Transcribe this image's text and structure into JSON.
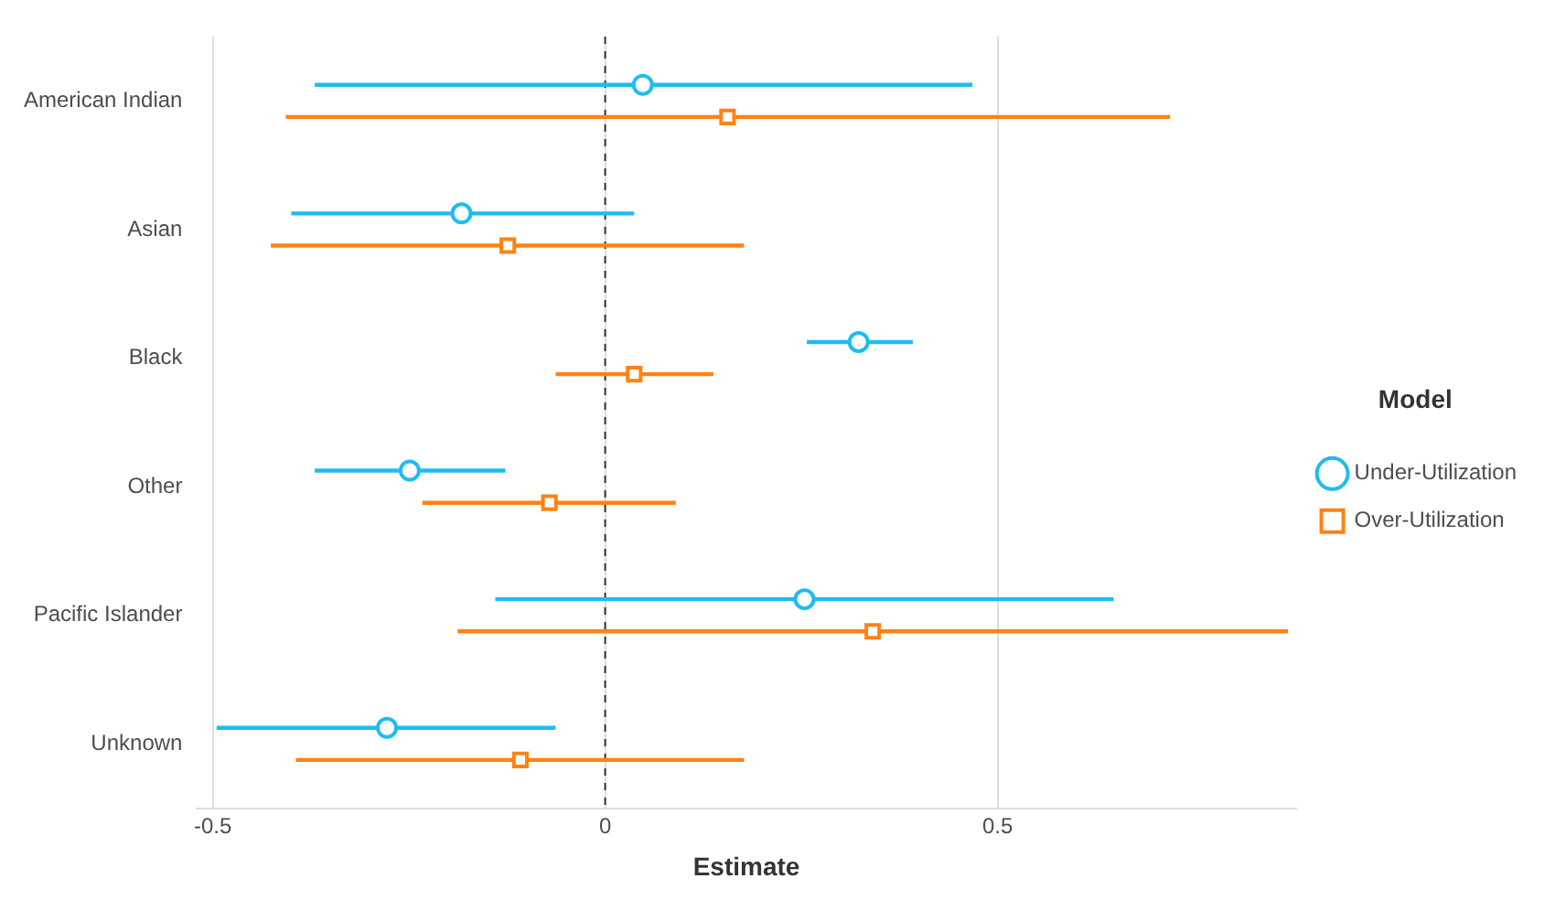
{
  "chart_data": {
    "type": "scatter",
    "orientation": "horizontal",
    "xlabel": "Estimate",
    "legend_title": "Model",
    "legend": "right",
    "grid": "x",
    "categories": [
      "American Indian",
      "Asian",
      "Black",
      "Other",
      "Pacific Islander",
      "Unknown"
    ],
    "xlim": [
      -0.52,
      0.88
    ],
    "xticks": [
      -0.5,
      0,
      0.5
    ],
    "ref_lines": [
      {
        "axis": "x",
        "value": 0,
        "line_style": "dashed",
        "color": "#333333"
      }
    ],
    "series": [
      {
        "name": "Under-Utilization",
        "color": "#1ebcf0",
        "marker": "circle",
        "values": [
          0.048,
          -0.183,
          0.323,
          -0.249,
          0.254,
          -0.278
        ],
        "errors": [
          [
            -0.37,
            0.468
          ],
          [
            -0.4,
            0.037
          ],
          [
            0.257,
            0.392
          ],
          [
            -0.37,
            -0.127
          ],
          [
            -0.14,
            0.648
          ],
          [
            -0.495,
            -0.063
          ]
        ]
      },
      {
        "name": "Over-Utilization",
        "color": "#ff8214",
        "marker": "square",
        "values": [
          0.156,
          -0.124,
          0.037,
          -0.071,
          0.341,
          -0.108
        ],
        "errors": [
          [
            -0.407,
            0.72
          ],
          [
            -0.426,
            0.177
          ],
          [
            -0.063,
            0.138
          ],
          [
            -0.233,
            0.09
          ],
          [
            -0.188,
            0.87
          ],
          [
            -0.394,
            0.177
          ]
        ]
      }
    ]
  }
}
